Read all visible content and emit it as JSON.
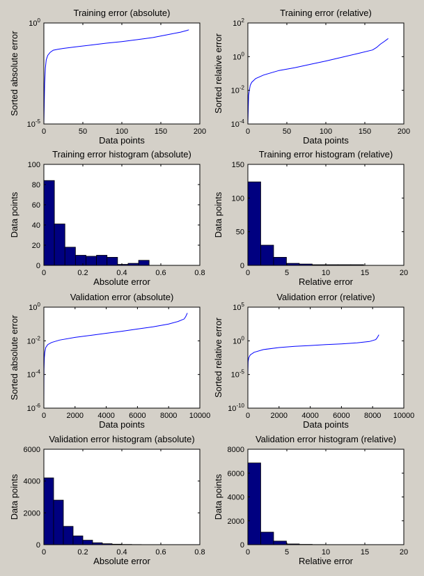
{
  "colors": {
    "background": "#d4d0c8",
    "axes_bg": "#ffffff",
    "line": "#0000ff",
    "bar_fill": "#000080",
    "bar_edge": "#000000"
  },
  "chart_data": [
    {
      "id": "p1",
      "type": "line",
      "title": "Training error (absolute)",
      "xlabel": "Data points",
      "ylabel": "Sorted absolute error",
      "xlim": [
        0,
        200
      ],
      "xticks": [
        0,
        50,
        100,
        150,
        200
      ],
      "yscale": "log",
      "ylim_exp": [
        -5,
        0
      ],
      "yticks_exp": [
        -5,
        0
      ],
      "x": [
        0,
        1,
        2,
        3,
        5,
        8,
        12,
        18,
        25,
        40,
        60,
        80,
        100,
        120,
        140,
        160,
        175,
        183,
        186
      ],
      "y": [
        1e-05,
        0.001,
        0.006,
        0.015,
        0.025,
        0.035,
        0.045,
        0.05,
        0.055,
        0.065,
        0.08,
        0.1,
        0.12,
        0.15,
        0.19,
        0.27,
        0.35,
        0.42,
        0.46
      ]
    },
    {
      "id": "p2",
      "type": "line",
      "title": "Training error (relative)",
      "xlabel": "Data points",
      "ylabel": "Sorted relative error",
      "xlim": [
        0,
        200
      ],
      "xticks": [
        0,
        50,
        100,
        150,
        200
      ],
      "yscale": "log",
      "ylim_exp": [
        -4,
        2
      ],
      "yticks_exp": [
        -4,
        -2,
        0,
        2
      ],
      "x": [
        0,
        1,
        2,
        3,
        5,
        10,
        20,
        40,
        60,
        80,
        100,
        120,
        140,
        160,
        165,
        170,
        175,
        180
      ],
      "y": [
        0.0001,
        0.005,
        0.01,
        0.02,
        0.03,
        0.05,
        0.08,
        0.15,
        0.22,
        0.35,
        0.55,
        0.9,
        1.5,
        2.5,
        3.5,
        5.5,
        8,
        12
      ]
    },
    {
      "id": "p3",
      "type": "bar",
      "title": "Training error histogram (absolute)",
      "xlabel": "Absolute error",
      "ylabel": "Data points",
      "xlim": [
        0,
        0.8
      ],
      "xticks": [
        0,
        0.2,
        0.4,
        0.6,
        0.8
      ],
      "ylim": [
        0,
        100
      ],
      "yticks": [
        0,
        20,
        40,
        60,
        80,
        100
      ],
      "bin_edges": [
        0,
        0.054,
        0.108,
        0.162,
        0.216,
        0.27,
        0.324,
        0.378,
        0.432,
        0.486,
        0.54
      ],
      "values": [
        84,
        41,
        18,
        10,
        9,
        10,
        8,
        1,
        2,
        5
      ]
    },
    {
      "id": "p4",
      "type": "bar",
      "title": "Training error histogram (relative)",
      "xlabel": "Relative error",
      "ylabel": "Data points",
      "xlim": [
        0,
        20
      ],
      "xticks": [
        0,
        5,
        10,
        15,
        20
      ],
      "ylim": [
        0,
        150
      ],
      "yticks": [
        0,
        50,
        100,
        150
      ],
      "bin_edges": [
        0,
        1.65,
        3.3,
        4.95,
        6.6,
        8.25,
        9.9,
        11.55,
        13.2,
        14.85,
        16.5
      ],
      "values": [
        124,
        30,
        12,
        3,
        2,
        1,
        1,
        1,
        1,
        0
      ]
    },
    {
      "id": "p5",
      "type": "line",
      "title": "Validation error (absolute)",
      "xlabel": "Data points",
      "ylabel": "Sorted absolute error",
      "xlim": [
        0,
        10000
      ],
      "xticks": [
        0,
        2000,
        4000,
        6000,
        8000,
        10000
      ],
      "yscale": "log",
      "ylim_exp": [
        -6,
        0
      ],
      "yticks_exp": [
        -6,
        -4,
        -2,
        0
      ],
      "x": [
        0,
        10,
        30,
        60,
        120,
        250,
        500,
        1000,
        2000,
        3000,
        4000,
        5000,
        6000,
        7000,
        8000,
        8600,
        9000,
        9100,
        9200
      ],
      "y": [
        2e-06,
        0.0002,
        0.001,
        0.002,
        0.004,
        0.006,
        0.008,
        0.011,
        0.016,
        0.021,
        0.028,
        0.037,
        0.05,
        0.068,
        0.1,
        0.14,
        0.2,
        0.28,
        0.45
      ]
    },
    {
      "id": "p6",
      "type": "line",
      "title": "Validation error (relative)",
      "xlabel": "Data points",
      "ylabel": "Sorted relative error",
      "xlim": [
        0,
        10000
      ],
      "xticks": [
        0,
        2000,
        4000,
        6000,
        8000,
        10000
      ],
      "yscale": "log",
      "ylim_exp": [
        -10,
        5
      ],
      "yticks_exp": [
        -10,
        -5,
        0,
        5
      ],
      "x": [
        0,
        20,
        60,
        150,
        400,
        1000,
        2000,
        3000,
        4000,
        5000,
        6000,
        7000,
        7800,
        8200,
        8300,
        8400
      ],
      "y": [
        1e-05,
        0.0008,
        0.003,
        0.008,
        0.02,
        0.05,
        0.1,
        0.15,
        0.2,
        0.27,
        0.35,
        0.5,
        0.8,
        1.5,
        3,
        8
      ]
    },
    {
      "id": "p7",
      "type": "bar",
      "title": "Validation error histogram (absolute)",
      "xlabel": "Absolute error",
      "ylabel": "Data points",
      "xlim": [
        0,
        0.8
      ],
      "xticks": [
        0,
        0.2,
        0.4,
        0.6,
        0.8
      ],
      "ylim": [
        0,
        6000
      ],
      "yticks": [
        0,
        2000,
        4000,
        6000
      ],
      "bin_edges": [
        0,
        0.05,
        0.1,
        0.15,
        0.2,
        0.25,
        0.3,
        0.35,
        0.4,
        0.45,
        0.5
      ],
      "values": [
        4200,
        2800,
        1150,
        550,
        280,
        120,
        60,
        30,
        15,
        8
      ]
    },
    {
      "id": "p8",
      "type": "bar",
      "title": "Validation error histogram (relative)",
      "xlabel": "Relative error",
      "ylabel": "Data points",
      "xlim": [
        0,
        20
      ],
      "xticks": [
        0,
        5,
        10,
        15,
        20
      ],
      "ylim": [
        0,
        8000
      ],
      "yticks": [
        0,
        2000,
        4000,
        6000,
        8000
      ],
      "bin_edges": [
        0,
        1.65,
        3.3,
        4.95,
        6.6,
        8.25,
        9.9,
        11.55,
        13.2,
        14.85,
        16.5
      ],
      "values": [
        6850,
        1050,
        300,
        60,
        25,
        10,
        5,
        3,
        2,
        1
      ]
    }
  ]
}
